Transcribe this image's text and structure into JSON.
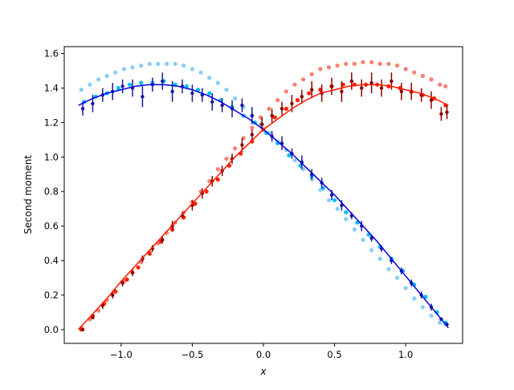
{
  "chart_data": {
    "type": "scatter",
    "xlabel": "x",
    "ylabel": "Second moment",
    "xlim": [
      -1.4,
      1.4
    ],
    "ylim": [
      -0.08,
      1.64
    ],
    "xticks": [
      -1.0,
      -0.5,
      0.0,
      0.5,
      1.0
    ],
    "xtick_labels": [
      "−1.0",
      "−0.5",
      "0.0",
      "0.5",
      "1.0"
    ],
    "yticks": [
      0.0,
      0.2,
      0.4,
      0.6,
      0.8,
      1.0,
      1.2,
      1.4,
      1.6
    ],
    "ytick_labels": [
      "0.0",
      "0.2",
      "0.4",
      "0.6",
      "0.8",
      "1.0",
      "1.2",
      "1.4",
      "1.6"
    ],
    "grid": false,
    "legend": "none",
    "series": [
      {
        "color": "#87cefa",
        "marker": "dot",
        "error_bars": false,
        "x": [
          -1.28,
          -1.22,
          -1.16,
          -1.1,
          -1.04,
          -0.98,
          -0.92,
          -0.86,
          -0.8,
          -0.74,
          -0.68,
          -0.62,
          -0.56,
          -0.5,
          -0.44,
          -0.38,
          -0.32,
          -0.26,
          -0.2,
          -0.14,
          -0.08,
          -0.02,
          0.04,
          0.1,
          0.16,
          0.22,
          0.28,
          0.34,
          0.4,
          0.46,
          0.52,
          0.58,
          0.64,
          0.7,
          0.76,
          0.82,
          0.88,
          0.94,
          1.0,
          1.06,
          1.12,
          1.18,
          1.24,
          1.28
        ],
        "y": [
          1.39,
          1.42,
          1.45,
          1.47,
          1.49,
          1.51,
          1.52,
          1.53,
          1.54,
          1.54,
          1.54,
          1.54,
          1.53,
          1.51,
          1.49,
          1.46,
          1.43,
          1.39,
          1.34,
          1.29,
          1.24,
          1.19,
          1.14,
          1.09,
          1.04,
          0.98,
          0.93,
          0.87,
          0.81,
          0.75,
          0.7,
          0.64,
          0.58,
          0.52,
          0.46,
          0.41,
          0.35,
          0.3,
          0.24,
          0.18,
          0.13,
          0.08,
          0.04,
          0.03
        ]
      },
      {
        "color": "#fa8072",
        "marker": "dot",
        "error_bars": false,
        "x": [
          -1.28,
          -1.22,
          -1.16,
          -1.1,
          -1.04,
          -0.98,
          -0.92,
          -0.86,
          -0.8,
          -0.74,
          -0.68,
          -0.62,
          -0.56,
          -0.5,
          -0.44,
          -0.38,
          -0.32,
          -0.26,
          -0.2,
          -0.14,
          -0.08,
          -0.02,
          0.04,
          0.1,
          0.16,
          0.22,
          0.28,
          0.34,
          0.4,
          0.46,
          0.52,
          0.58,
          0.64,
          0.7,
          0.76,
          0.82,
          0.88,
          0.94,
          1.0,
          1.06,
          1.12,
          1.18,
          1.24,
          1.28
        ],
        "y": [
          0.01,
          0.06,
          0.11,
          0.17,
          0.22,
          0.28,
          0.33,
          0.39,
          0.45,
          0.5,
          0.56,
          0.62,
          0.68,
          0.74,
          0.8,
          0.86,
          0.93,
          0.99,
          1.05,
          1.11,
          1.17,
          1.23,
          1.28,
          1.33,
          1.38,
          1.42,
          1.45,
          1.48,
          1.51,
          1.52,
          1.53,
          1.54,
          1.54,
          1.55,
          1.55,
          1.54,
          1.54,
          1.53,
          1.51,
          1.49,
          1.47,
          1.45,
          1.42,
          1.41
        ]
      },
      {
        "color": "#00bfff",
        "marker": "dot",
        "error_bars": false,
        "x": [
          -1.26,
          -1.18,
          -1.1,
          -1.02,
          -0.94,
          -0.86,
          -0.78,
          -0.7,
          -0.62,
          -0.54,
          -0.46,
          -0.38,
          -0.3,
          -0.22,
          -0.14,
          -0.06,
          0.02,
          0.1,
          0.18,
          0.26,
          0.34,
          0.42,
          0.5,
          0.58,
          0.66,
          0.74,
          0.82,
          0.9,
          0.98,
          1.06,
          1.14,
          1.22,
          1.28
        ],
        "y": [
          1.32,
          1.35,
          1.37,
          1.4,
          1.42,
          1.43,
          1.43,
          1.44,
          1.42,
          1.41,
          1.39,
          1.37,
          1.33,
          1.29,
          1.24,
          1.2,
          1.14,
          1.08,
          1.01,
          0.95,
          0.89,
          0.82,
          0.75,
          0.68,
          0.62,
          0.55,
          0.48,
          0.41,
          0.34,
          0.26,
          0.19,
          0.1,
          0.04
        ]
      },
      {
        "color": "#ff2200",
        "marker": "dot",
        "error_bars": false,
        "x": [
          -1.28,
          -1.2,
          -1.12,
          -1.04,
          -0.96,
          -0.88,
          -0.8,
          -0.72,
          -0.64,
          -0.56,
          -0.48,
          -0.4,
          -0.32,
          -0.24,
          -0.16,
          -0.08,
          0.0,
          0.08,
          0.16,
          0.24,
          0.32,
          0.4,
          0.48,
          0.56,
          0.64,
          0.72,
          0.8,
          0.88,
          0.96,
          1.04,
          1.12,
          1.2,
          1.28
        ],
        "y": [
          0.0,
          0.08,
          0.15,
          0.22,
          0.29,
          0.36,
          0.44,
          0.51,
          0.58,
          0.65,
          0.73,
          0.8,
          0.87,
          0.95,
          1.02,
          1.09,
          1.16,
          1.23,
          1.28,
          1.33,
          1.37,
          1.39,
          1.41,
          1.42,
          1.42,
          1.42,
          1.42,
          1.41,
          1.4,
          1.38,
          1.36,
          1.34,
          1.3
        ]
      },
      {
        "color": "#1a1a9a",
        "marker": "dot",
        "error_bars": true,
        "x": [
          -1.27,
          -1.2,
          -1.13,
          -1.06,
          -0.99,
          -0.92,
          -0.85,
          -0.78,
          -0.71,
          -0.64,
          -0.57,
          -0.5,
          -0.43,
          -0.36,
          -0.29,
          -0.22,
          -0.15,
          -0.08,
          -0.01,
          0.06,
          0.13,
          0.2,
          0.27,
          0.34,
          0.41,
          0.48,
          0.55,
          0.62,
          0.69,
          0.76,
          0.83,
          0.9,
          0.97,
          1.04,
          1.11,
          1.18,
          1.25,
          1.29
        ],
        "y": [
          1.28,
          1.31,
          1.36,
          1.38,
          1.41,
          1.4,
          1.35,
          1.42,
          1.44,
          1.38,
          1.41,
          1.37,
          1.36,
          1.32,
          1.3,
          1.28,
          1.3,
          1.24,
          1.19,
          1.12,
          1.08,
          1.02,
          0.97,
          0.9,
          0.85,
          0.78,
          0.72,
          0.66,
          0.6,
          0.53,
          0.47,
          0.4,
          0.34,
          0.27,
          0.2,
          0.13,
          0.06,
          0.03
        ],
        "err": [
          0.04,
          0.05,
          0.04,
          0.05,
          0.04,
          0.05,
          0.06,
          0.04,
          0.05,
          0.06,
          0.04,
          0.05,
          0.04,
          0.05,
          0.04,
          0.05,
          0.04,
          0.05,
          0.04,
          0.03,
          0.04,
          0.03,
          0.04,
          0.03,
          0.03,
          0.03,
          0.03,
          0.02,
          0.03,
          0.02,
          0.02,
          0.02,
          0.02,
          0.02,
          0.02,
          0.02,
          0.01,
          0.01
        ]
      },
      {
        "color": "#8b0000",
        "marker": "dot",
        "error_bars": true,
        "x": [
          -1.27,
          -1.2,
          -1.13,
          -1.06,
          -0.99,
          -0.92,
          -0.85,
          -0.78,
          -0.71,
          -0.64,
          -0.57,
          -0.5,
          -0.43,
          -0.36,
          -0.29,
          -0.22,
          -0.15,
          -0.08,
          -0.01,
          0.06,
          0.13,
          0.2,
          0.27,
          0.34,
          0.41,
          0.48,
          0.55,
          0.62,
          0.69,
          0.76,
          0.83,
          0.9,
          0.97,
          1.04,
          1.11,
          1.18,
          1.25,
          1.29
        ],
        "y": [
          0.0,
          0.07,
          0.14,
          0.2,
          0.27,
          0.33,
          0.41,
          0.47,
          0.52,
          0.6,
          0.66,
          0.72,
          0.79,
          0.86,
          0.92,
          0.99,
          1.07,
          1.13,
          1.19,
          1.24,
          1.28,
          1.31,
          1.35,
          1.39,
          1.37,
          1.41,
          1.38,
          1.44,
          1.4,
          1.43,
          1.4,
          1.44,
          1.38,
          1.38,
          1.36,
          1.33,
          1.25,
          1.26
        ],
        "err": [
          0.01,
          0.01,
          0.02,
          0.02,
          0.02,
          0.02,
          0.02,
          0.02,
          0.02,
          0.03,
          0.02,
          0.03,
          0.03,
          0.03,
          0.03,
          0.03,
          0.04,
          0.03,
          0.04,
          0.04,
          0.04,
          0.05,
          0.04,
          0.05,
          0.05,
          0.05,
          0.06,
          0.05,
          0.05,
          0.06,
          0.05,
          0.05,
          0.05,
          0.05,
          0.04,
          0.05,
          0.04,
          0.04
        ]
      }
    ],
    "lines": [
      {
        "color": "#0000dd",
        "x": [
          -1.3,
          -1.2,
          -1.1,
          -1.0,
          -0.9,
          -0.8,
          -0.7,
          -0.6,
          -0.5,
          -0.4,
          -0.3,
          -0.2,
          -0.1,
          0.0,
          0.1,
          0.2,
          0.3,
          0.4,
          0.5,
          0.6,
          0.7,
          0.8,
          0.9,
          1.0,
          1.1,
          1.2,
          1.3
        ],
        "y": [
          1.3,
          1.34,
          1.37,
          1.39,
          1.41,
          1.42,
          1.42,
          1.41,
          1.39,
          1.36,
          1.32,
          1.27,
          1.22,
          1.16,
          1.09,
          1.02,
          0.94,
          0.86,
          0.78,
          0.69,
          0.6,
          0.51,
          0.41,
          0.31,
          0.21,
          0.11,
          0.01
        ]
      },
      {
        "color": "#ff1a00",
        "x": [
          -1.3,
          -1.2,
          -1.1,
          -1.0,
          -0.9,
          -0.8,
          -0.7,
          -0.6,
          -0.5,
          -0.4,
          -0.3,
          -0.2,
          -0.1,
          0.0,
          0.1,
          0.2,
          0.3,
          0.4,
          0.5,
          0.6,
          0.7,
          0.8,
          0.9,
          1.0,
          1.1,
          1.2,
          1.3
        ],
        "y": [
          0.0,
          0.09,
          0.18,
          0.28,
          0.37,
          0.46,
          0.55,
          0.64,
          0.73,
          0.82,
          0.91,
          1.0,
          1.08,
          1.16,
          1.22,
          1.28,
          1.33,
          1.37,
          1.39,
          1.41,
          1.42,
          1.42,
          1.41,
          1.39,
          1.37,
          1.34,
          1.3
        ]
      }
    ]
  }
}
